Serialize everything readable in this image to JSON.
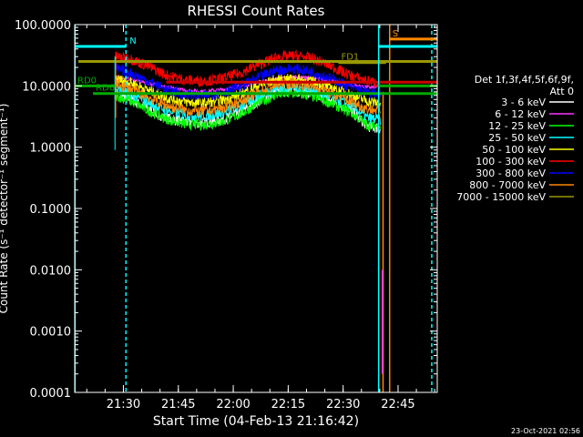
{
  "chart_data": {
    "type": "line",
    "title": "RHESSI Count Rates",
    "xlabel": "Start Time (04-Feb-13 21:16:42)",
    "ylabel": "Count Rate (s⁻¹ detector⁻¹ segment⁻¹)",
    "ylog": true,
    "ylim": [
      0.0001,
      100.0
    ],
    "xlim": [
      0,
      99
    ],
    "x_unit": "minutes since 21:16:42",
    "x_ticks": [
      {
        "label": "21:30",
        "value": 13.3
      },
      {
        "label": "21:45",
        "value": 28.3
      },
      {
        "label": "22:00",
        "value": 43.3
      },
      {
        "label": "22:15",
        "value": 58.3
      },
      {
        "label": "22:30",
        "value": 73.3
      },
      {
        "label": "22:45",
        "value": 88.3
      }
    ],
    "y_ticks": [
      {
        "label": "0.0001",
        "value": 0.0001
      },
      {
        "label": "0.0010",
        "value": 0.001
      },
      {
        "label": "0.0100",
        "value": 0.01
      },
      {
        "label": "0.1000",
        "value": 0.1
      },
      {
        "label": "1.0000",
        "value": 1
      },
      {
        "label": "10.0000",
        "value": 10
      },
      {
        "label": "100.0000",
        "value": 100
      }
    ],
    "legend_header": [
      "Det 1f,3f,4f,5f,6f,9f,",
      "Att 0"
    ],
    "legend_position": "right",
    "footer": "23-Oct-2021 02:56",
    "series": [
      {
        "name": "3 - 6 keV",
        "color": "#ffffff",
        "x": [
          11,
          15,
          20,
          25,
          30,
          35,
          40,
          45,
          50,
          55,
          60,
          65,
          70,
          75,
          80,
          83.5
        ],
        "y": [
          7.5,
          6.2,
          4.2,
          3.0,
          2.6,
          2.5,
          2.8,
          3.6,
          5.6,
          8.0,
          8.4,
          7.5,
          5.6,
          4.2,
          2.2,
          2.0
        ]
      },
      {
        "name": "6 - 12 keV",
        "color": "#ff33ff",
        "x": [
          11,
          15,
          20,
          25,
          30,
          35,
          40,
          45,
          50,
          55,
          60,
          65,
          70,
          75,
          80,
          83.5
        ],
        "y": [
          14,
          13,
          11,
          9.5,
          8.5,
          8.2,
          8.6,
          9.8,
          11.5,
          13,
          14,
          13.5,
          12,
          10.5,
          9.5,
          9.5
        ]
      },
      {
        "name": "12 - 25 keV",
        "color": "#00ff00",
        "x": [
          11,
          15,
          20,
          25,
          30,
          35,
          40,
          45,
          50,
          55,
          60,
          65,
          70,
          75,
          80,
          83.5
        ],
        "y": [
          7,
          5.8,
          4.0,
          2.9,
          2.4,
          2.3,
          2.6,
          3.4,
          5.2,
          7.2,
          7.6,
          6.8,
          5.2,
          3.8,
          2.3,
          2.2
        ]
      },
      {
        "name": "25 - 50 keV",
        "color": "#00ffff",
        "x": [
          11,
          15,
          20,
          25,
          30,
          35,
          40,
          45,
          50,
          55,
          60,
          65,
          70,
          75,
          80,
          83.5
        ],
        "y": [
          9,
          7.5,
          5.4,
          4.0,
          3.4,
          3.2,
          3.6,
          4.6,
          6.8,
          9.2,
          9.6,
          8.6,
          6.6,
          5.0,
          3.0,
          2.8
        ]
      },
      {
        "name": "50 - 100 keV",
        "color": "#ffff00",
        "x": [
          11,
          15,
          20,
          25,
          30,
          35,
          40,
          45,
          50,
          55,
          60,
          65,
          70,
          75,
          80,
          83.5
        ],
        "y": [
          13,
          11.5,
          8.6,
          6.4,
          5.5,
          5.2,
          5.8,
          7.2,
          10,
          12.5,
          13,
          11.8,
          9.4,
          7.4,
          5.6,
          5.2
        ]
      },
      {
        "name": "100 - 300 keV",
        "color": "#ff0000",
        "x": [
          11,
          15,
          20,
          25,
          30,
          35,
          40,
          45,
          50,
          55,
          60,
          65,
          70,
          75,
          80,
          83.5
        ],
        "y": [
          30,
          28,
          21,
          15,
          12.5,
          12,
          13,
          16,
          22,
          29,
          31,
          28,
          21,
          15,
          12,
          11
        ]
      },
      {
        "name": "300 - 800 keV",
        "color": "#0000ff",
        "x": [
          11,
          15,
          20,
          25,
          30,
          35,
          40,
          45,
          50,
          55,
          60,
          65,
          70,
          75,
          80,
          83.5
        ],
        "y": [
          19,
          16.5,
          12,
          8.6,
          7.2,
          6.8,
          7.6,
          9.6,
          13.5,
          18,
          19,
          17,
          13,
          9.8,
          7.8,
          7.4
        ]
      },
      {
        "name": "800 - 7000 keV",
        "color": "#ff8800",
        "x": [
          11,
          15,
          20,
          25,
          30,
          35,
          40,
          45,
          50,
          55,
          60,
          65,
          70,
          75,
          80,
          83.5
        ],
        "y": [
          11,
          9.2,
          6.6,
          4.8,
          4.0,
          3.8,
          4.3,
          5.4,
          7.8,
          10.5,
          11,
          9.8,
          7.6,
          5.7,
          4.2,
          4.0
        ]
      },
      {
        "name": "7000 - 15000 keV",
        "color": "#999900",
        "x": [
          1,
          99
        ],
        "y": [
          25,
          25
        ]
      }
    ],
    "markers": [
      {
        "label": "N",
        "color": "#00ffff",
        "x": [
          0,
          14
        ],
        "y": 44,
        "vline": 14.0
      },
      {
        "label": "RD0",
        "color": "#00aa00",
        "x": [
          0,
          11
        ],
        "y": 10
      },
      {
        "label": "RD6",
        "color": "#00aa00",
        "x": [
          5,
          99
        ],
        "y": 7.5
      },
      {
        "label": "F",
        "color": "#cc0000",
        "x": [
          25,
          99
        ],
        "y": 11.5
      },
      {
        "label": "FD1",
        "color": "#999900",
        "x": [
          72,
          85
        ],
        "y": 24
      },
      {
        "label": "S",
        "color": "#ff8800",
        "x": [
          86,
          99
        ],
        "y": 58
      },
      {
        "label": "",
        "color": "#00ffff",
        "x": [
          83,
          99
        ],
        "y": 44,
        "vline": 83.0
      },
      {
        "label": "",
        "color": "#00aa00",
        "x": [
          83,
          99
        ],
        "y": 10
      }
    ],
    "vlines": [
      {
        "x": 0.1,
        "color": "#00ffff",
        "dashed": false
      },
      {
        "x": 97.5,
        "color": "#00ffff",
        "dashed": true
      },
      {
        "x": 86,
        "color": "#ff8800",
        "dashed": false
      }
    ],
    "grid": false
  }
}
